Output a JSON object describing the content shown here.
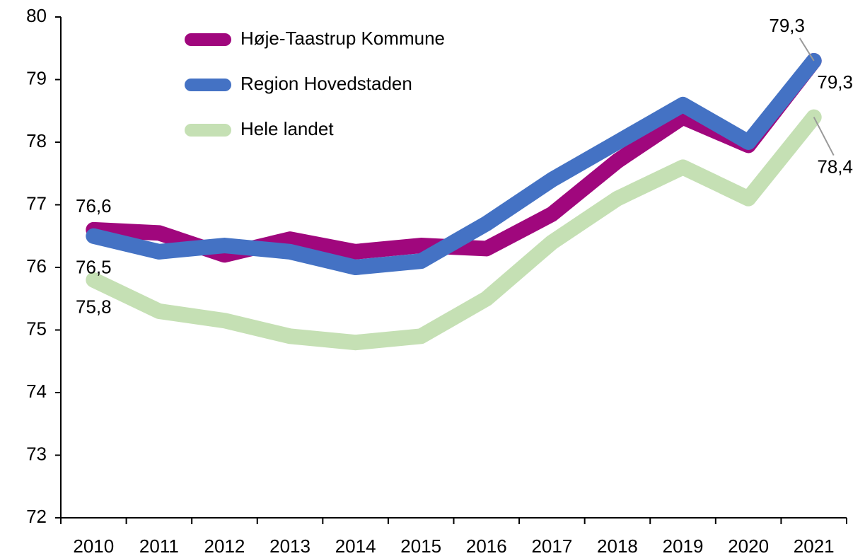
{
  "chart_data": {
    "type": "line",
    "categories": [
      "2010",
      "2011",
      "2012",
      "2013",
      "2014",
      "2015",
      "2016",
      "2017",
      "2018",
      "2019",
      "2020",
      "2021"
    ],
    "series": [
      {
        "name": "Høje-Taastrup Kommune",
        "color": "#a0077d",
        "values": [
          76.6,
          76.55,
          76.2,
          76.45,
          76.25,
          76.35,
          76.3,
          76.85,
          77.7,
          78.4,
          77.95,
          79.3
        ],
        "value_labels": [
          "76,6",
          null,
          null,
          null,
          null,
          null,
          null,
          null,
          null,
          null,
          null,
          "79,3"
        ]
      },
      {
        "name": "Region Hovedstaden",
        "color": "#4472c4",
        "values": [
          76.5,
          76.25,
          76.35,
          76.25,
          76.0,
          76.1,
          76.7,
          77.4,
          78.0,
          78.6,
          78.0,
          79.3
        ],
        "value_labels": [
          "76,5",
          null,
          null,
          null,
          null,
          null,
          null,
          null,
          null,
          null,
          null,
          "79,3"
        ]
      },
      {
        "name": "Hele landet",
        "color": "#c5e0b4",
        "values": [
          75.8,
          75.3,
          75.15,
          74.9,
          74.8,
          74.9,
          75.5,
          76.4,
          77.1,
          77.6,
          77.1,
          78.4
        ],
        "value_labels": [
          "75,8",
          null,
          null,
          null,
          null,
          null,
          null,
          null,
          null,
          null,
          null,
          "78,4"
        ]
      }
    ],
    "ylim": [
      72,
      80
    ],
    "yticks": [
      72,
      73,
      74,
      75,
      76,
      77,
      78,
      79,
      80
    ],
    "grid": false,
    "legend": "top-left"
  }
}
